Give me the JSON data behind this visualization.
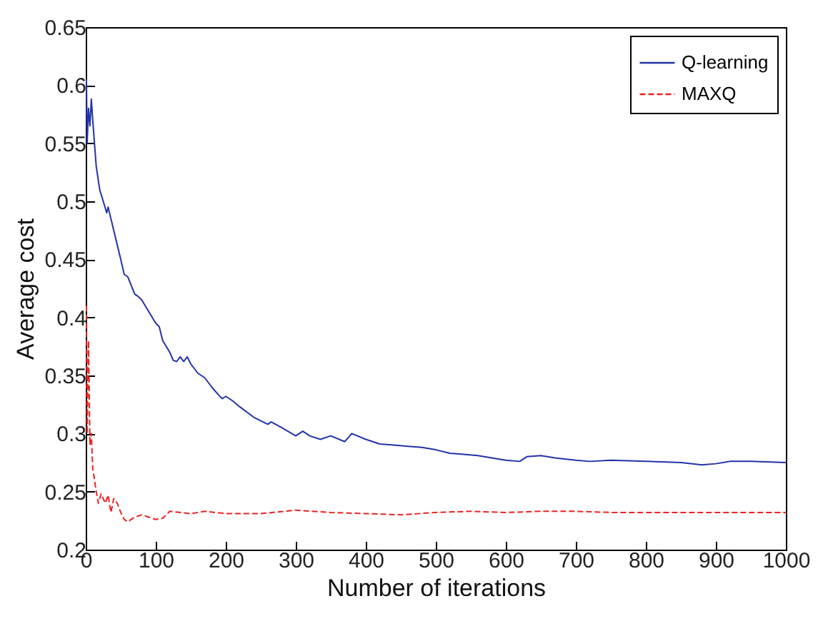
{
  "chart_data": {
    "type": "line",
    "xlabel": "Number of iterations",
    "ylabel": "Average cost",
    "xlim": [
      0,
      1000
    ],
    "xticks": [
      0,
      100,
      200,
      300,
      400,
      500,
      600,
      700,
      800,
      900,
      1000
    ],
    "ylim": [
      0.2,
      0.65
    ],
    "yticks": [
      0.2,
      0.25,
      0.3,
      0.35,
      0.4,
      0.45,
      0.5,
      0.55,
      0.6,
      0.65
    ],
    "grid": false,
    "legend": "top right",
    "series": [
      {
        "name": "Q-learning",
        "color": "#2233aa",
        "line_style": "solid",
        "x": [
          1,
          2,
          4,
          6,
          8,
          10,
          15,
          20,
          30,
          32,
          40,
          50,
          55,
          60,
          70,
          75,
          80,
          90,
          100,
          105,
          110,
          120,
          125,
          130,
          135,
          140,
          145,
          150,
          160,
          170,
          180,
          190,
          195,
          200,
          210,
          220,
          240,
          260,
          265,
          280,
          300,
          310,
          320,
          335,
          350,
          370,
          380,
          400,
          420,
          440,
          460,
          480,
          500,
          520,
          540,
          560,
          580,
          600,
          620,
          630,
          650,
          670,
          700,
          720,
          750,
          800,
          850,
          880,
          900,
          920,
          950,
          1000
        ],
        "values": [
          0.605,
          0.55,
          0.58,
          0.565,
          0.588,
          0.57,
          0.53,
          0.51,
          0.49,
          0.495,
          0.475,
          0.45,
          0.437,
          0.435,
          0.42,
          0.418,
          0.415,
          0.405,
          0.395,
          0.392,
          0.38,
          0.37,
          0.363,
          0.362,
          0.366,
          0.362,
          0.366,
          0.36,
          0.352,
          0.348,
          0.34,
          0.333,
          0.33,
          0.332,
          0.328,
          0.323,
          0.314,
          0.308,
          0.31,
          0.305,
          0.298,
          0.302,
          0.298,
          0.295,
          0.298,
          0.293,
          0.3,
          0.295,
          0.291,
          0.29,
          0.289,
          0.288,
          0.286,
          0.283,
          0.282,
          0.281,
          0.279,
          0.277,
          0.276,
          0.28,
          0.281,
          0.279,
          0.277,
          0.276,
          0.277,
          0.276,
          0.275,
          0.273,
          0.274,
          0.276,
          0.276,
          0.275
        ]
      },
      {
        "name": "MAXQ",
        "color": "#ee2222",
        "line_style": "dashed",
        "x": [
          1,
          2,
          4,
          6,
          8,
          10,
          15,
          18,
          22,
          28,
          32,
          36,
          40,
          45,
          50,
          55,
          60,
          70,
          80,
          90,
          100,
          110,
          120,
          150,
          170,
          200,
          250,
          300,
          350,
          400,
          450,
          500,
          550,
          600,
          650,
          700,
          750,
          800,
          900,
          1000
        ],
        "values": [
          0.41,
          0.3,
          0.38,
          0.29,
          0.3,
          0.27,
          0.25,
          0.24,
          0.248,
          0.24,
          0.247,
          0.232,
          0.244,
          0.24,
          0.232,
          0.226,
          0.224,
          0.228,
          0.23,
          0.228,
          0.226,
          0.227,
          0.233,
          0.231,
          0.233,
          0.231,
          0.231,
          0.234,
          0.232,
          0.231,
          0.23,
          0.232,
          0.233,
          0.232,
          0.233,
          0.233,
          0.232,
          0.232,
          0.232,
          0.232
        ]
      }
    ]
  }
}
